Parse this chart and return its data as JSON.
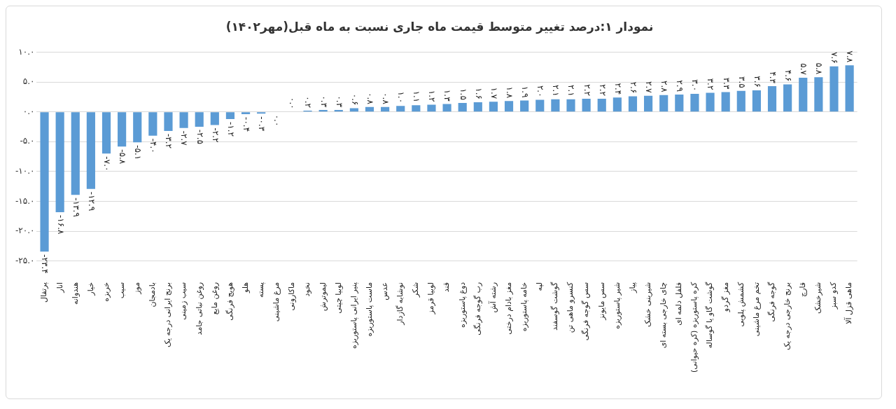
{
  "chart_data": {
    "type": "bar",
    "title": "نمودار ۱:درصد تغییر متوسط قیمت ماه جاری نسبت به ماه قبل(مهر۱۴۰۲)",
    "categories": [
      "پرتقال",
      "انار",
      "هندوانه",
      "خیار",
      "خربزه",
      "سیب",
      "موز",
      "بادمجان",
      "برنج ایرانی درجه یک",
      "سیب زمینی",
      "روغن نباتی جامد",
      "روغن مایع",
      "هویج فرنگی",
      "هلو",
      "پسته",
      "مرغ ماشینی",
      "ماکارونی",
      "نخود",
      "لیموترش",
      "لوبیا چیتی",
      "پنیر ایرانی پاستوریزه",
      "ماست پاستوریزه",
      "عدس",
      "نوشابه گازدار",
      "شکر",
      "لوبیا قرمز",
      "قند",
      "دوغ پاستوریزه",
      "رب گوجه فرنگی",
      "رشته آش",
      "مغز بادام درختی",
      "خامه پاستوریزه",
      "لپه",
      "گوشت گوسفند",
      "کنسرو ماهی تن",
      "سس گوجه فرنگی",
      "سس مایونز",
      "شیر پاستوریزه",
      "پیاز",
      "شیرینی خشک",
      "چای خارجی بسته ای",
      "فلفل دلمه ای",
      "کره پاستوریزه (کره حیوانی)",
      "گوشت گاو یا گوساله",
      "مغز گردو",
      "کشمش پلویی",
      "تخم مرغ ماشینی",
      "گوجه فرنگی",
      "برنج خارجی درجه یک",
      "قارچ",
      "شیرخشک",
      "کدو سبز",
      "ماهی قزل آلا"
    ],
    "values": [
      -23.4,
      -16.8,
      -13.9,
      -12.9,
      -7.0,
      -5.8,
      -5.1,
      -4.0,
      -3.2,
      -2.7,
      -2.5,
      -2.2,
      -1.2,
      -0.4,
      -0.3,
      -0.0,
      0.0,
      0.2,
      0.3,
      0.3,
      0.6,
      0.8,
      0.8,
      1.0,
      1.1,
      1.2,
      1.3,
      1.5,
      1.6,
      1.7,
      1.8,
      1.9,
      2.0,
      2.1,
      2.1,
      2.2,
      2.2,
      2.4,
      2.6,
      2.7,
      2.8,
      2.9,
      3.0,
      3.2,
      3.3,
      3.5,
      3.6,
      4.3,
      4.6,
      5.7,
      5.8,
      7.6,
      7.8
    ],
    "value_labels": [
      "-۲۳.۴",
      "-۱۶.۸",
      "-۱۳.۹",
      "-۱۲.۹",
      "-۷.۰",
      "-۵.۸",
      "-۵.۱",
      "-۴.۰",
      "-۳.۲",
      "-۲.۷",
      "-۲.۵",
      "-۲.۲",
      "-۱.۲",
      "-۰.۴",
      "-۰.۳",
      "۰.۰",
      "۰.۰",
      "۰.۲",
      "۰.۳",
      "۰.۳",
      "۰.۶",
      "۰.۸",
      "۰.۸",
      "۱.۰",
      "۱.۱",
      "۱.۲",
      "۱.۳",
      "۱.۵",
      "۱.۶",
      "۱.۷",
      "۱.۸",
      "۱.۹",
      "۲.۰",
      "۲.۱",
      "۲.۱",
      "۲.۲",
      "۲.۲",
      "۲.۴",
      "۲.۶",
      "۲.۷",
      "۲.۸",
      "۲.۹",
      "۳.۰",
      "۳.۲",
      "۳.۳",
      "۳.۵",
      "۳.۶",
      "۴.۳",
      "۴.۶",
      "۵.۷",
      "۵.۸",
      "۷.۶",
      "۷.۸"
    ],
    "color": "#5b9bd5",
    "ylim": [
      -25,
      10
    ],
    "yticks": [
      {
        "value": -25,
        "label": "-۲۵.۰"
      },
      {
        "value": -20,
        "label": "-۲۰.۰"
      },
      {
        "value": -15,
        "label": "-۱۵.۰"
      },
      {
        "value": -10,
        "label": "-۱۰.۰"
      },
      {
        "value": -5,
        "label": "-۵.۰"
      },
      {
        "value": 0,
        "label": "۰.۰"
      },
      {
        "value": 5,
        "label": "۵.۰"
      },
      {
        "value": 10,
        "label": "۱۰.۰"
      }
    ],
    "grid": "y"
  }
}
